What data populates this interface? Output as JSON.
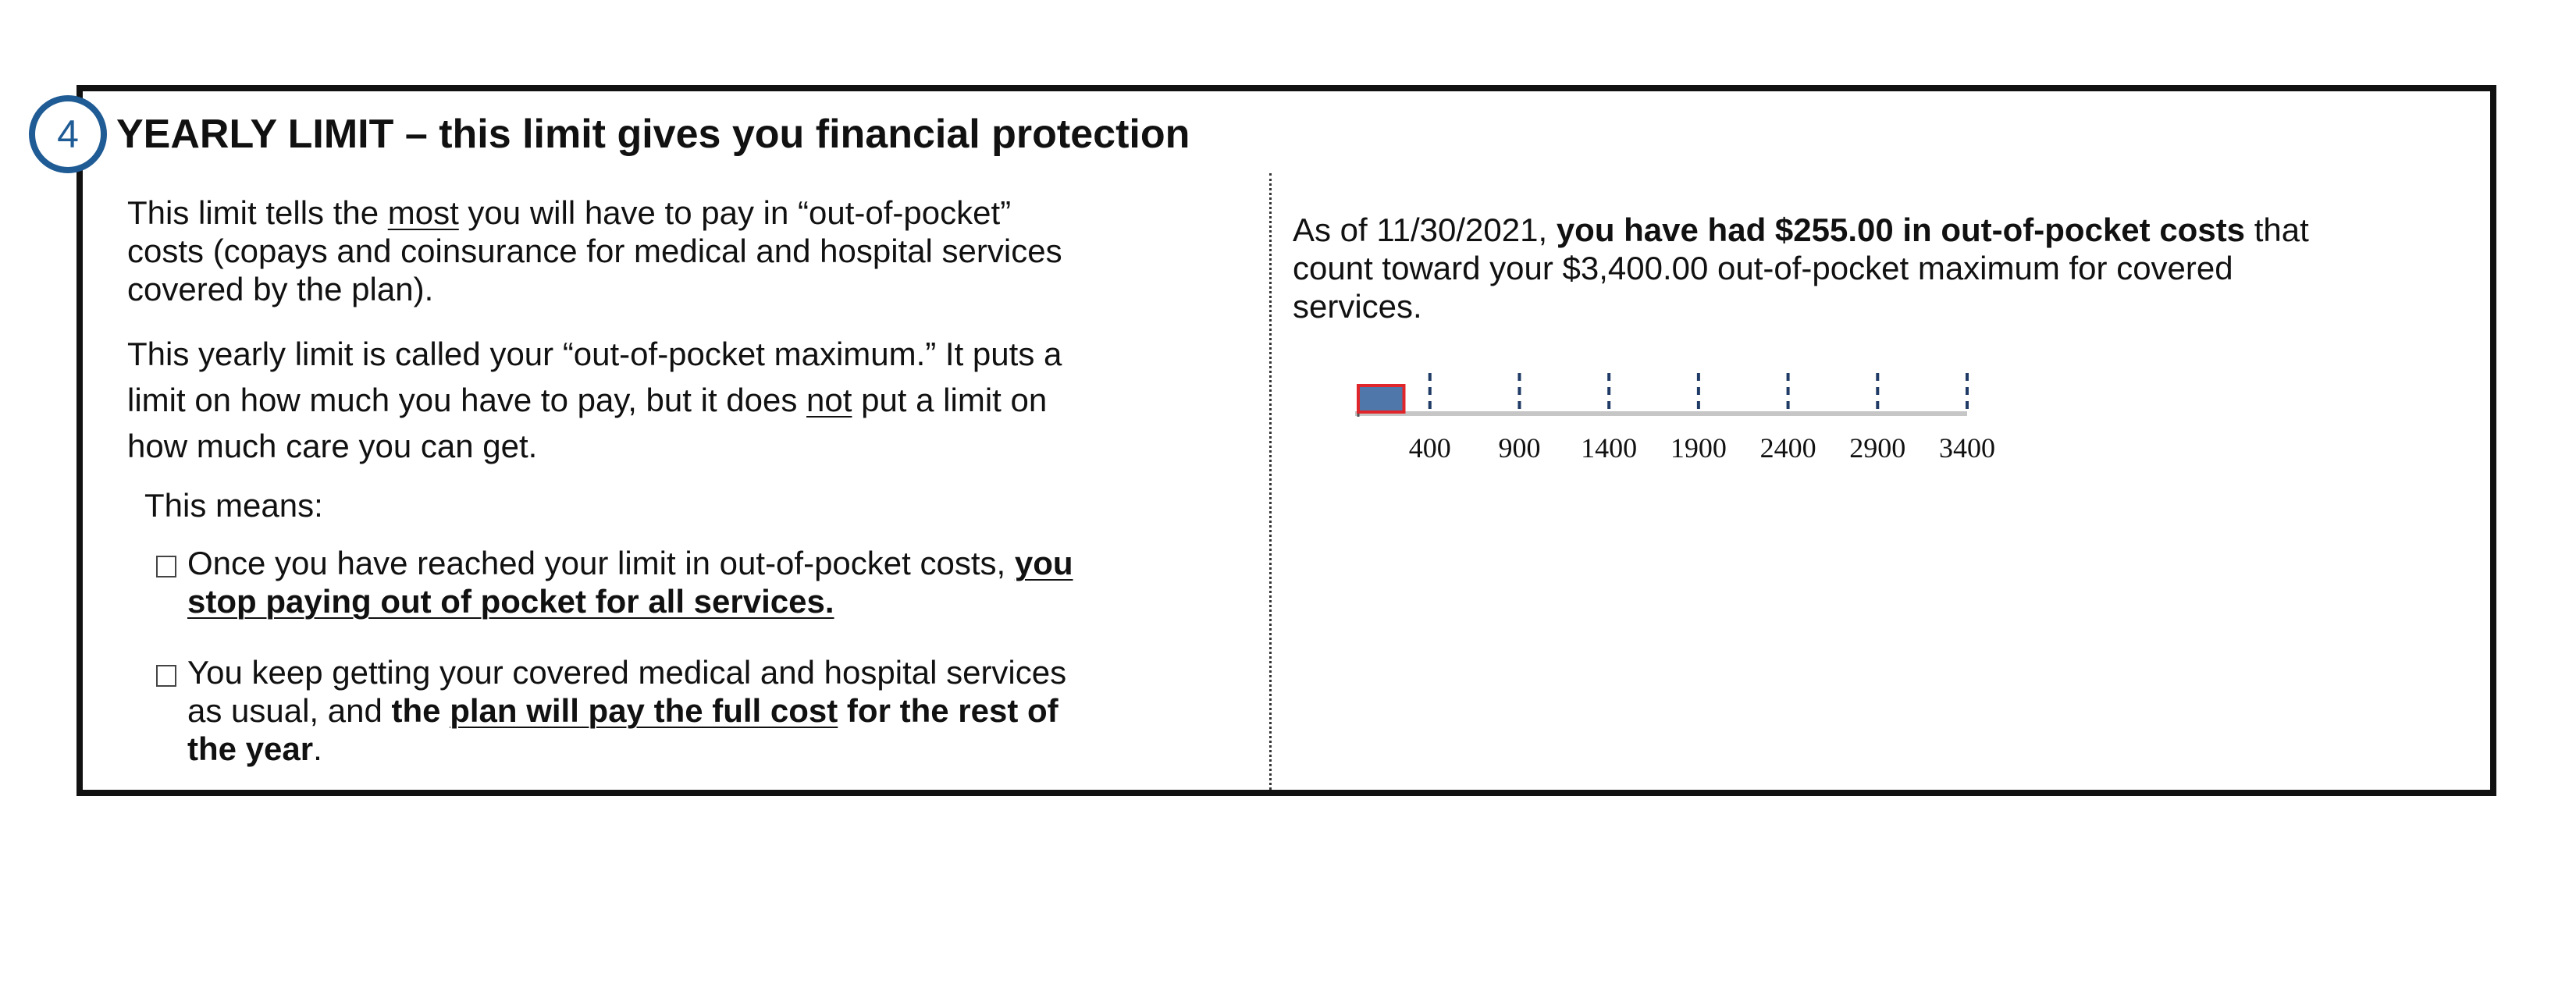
{
  "section": {
    "number": "4",
    "title": "YEARLY LIMIT – this limit gives you financial protection"
  },
  "left": {
    "p1": {
      "pre": "This limit tells the ",
      "underlined": "most",
      "post": " you will have to pay in “out-of-pocket”",
      "line2": "costs (copays and coinsurance for medical and hospital services",
      "line3": "covered by the plan)."
    },
    "p2": {
      "line1": "This yearly limit is called your “out-of-pocket maximum.” It puts a",
      "line2_pre": "limit on how much you have to pay, but it does ",
      "line2_underlined": "not",
      "line2_post": " put a limit on",
      "line3": "how much care you can get."
    },
    "this_means": "This means:",
    "bullets": [
      {
        "glyph": "☐",
        "line1_pre": "Once you have reached your limit in out-of-pocket costs, ",
        "line1_bold_underlined": "you",
        "line2_bold_underlined": "stop paying out of pocket for all services."
      },
      {
        "glyph": "☐",
        "line1": "You keep getting your covered medical and hospital services",
        "line2_pre": "as usual, and ",
        "line2_bold": "the ",
        "line2_bold_underlined": "plan will pay the full cost",
        "line2_bold_post": " for the rest of",
        "line3_bold": "the year",
        "line3_post": "."
      }
    ]
  },
  "right": {
    "statement": {
      "pre": "As of 11/30/2021, ",
      "bold1": "you have had  $255.00  in out-of-pocket costs",
      "post1": " that",
      "line2": "count toward your  $3,400.00  out-of-pocket maximum for covered",
      "line3": "services."
    }
  },
  "chart_data": {
    "type": "bar",
    "orientation": "horizontal",
    "title": "",
    "values": [
      255
    ],
    "xlim": [
      0,
      3400
    ],
    "ticks": [
      "400",
      "900",
      "1400",
      "1900",
      "2400",
      "2900",
      "3400"
    ],
    "tick_values": [
      400,
      900,
      1400,
      1900,
      2400,
      2900,
      3400
    ],
    "bar_fill": "#4f77aa",
    "bar_border": "#e0262b",
    "track_color": "#c6c6c6",
    "tick_color": "#1f3b66"
  }
}
